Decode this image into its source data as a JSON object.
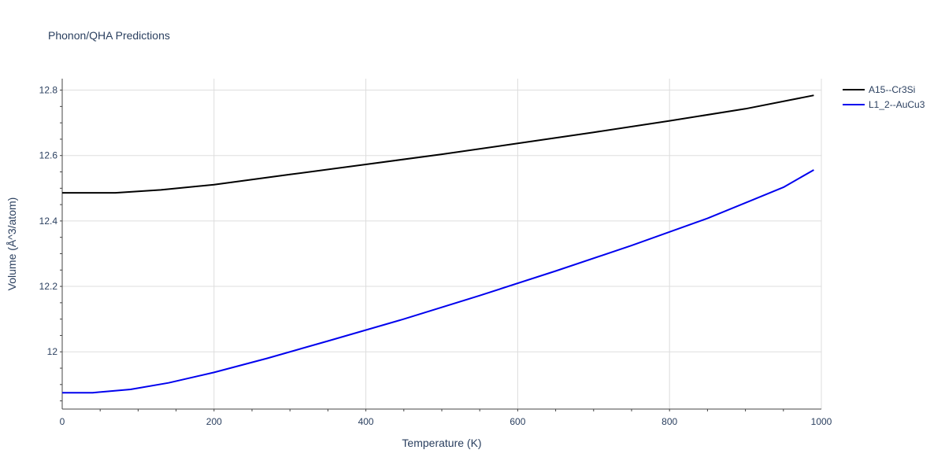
{
  "chart_data": {
    "type": "line",
    "title": "Phonon/QHA Predictions",
    "xlabel": "Temperature (K)",
    "ylabel": "Volume (Å^3/atom)",
    "xlim": [
      0,
      1000
    ],
    "ylim": [
      11.825,
      12.835
    ],
    "x_ticks": [
      0,
      200,
      400,
      600,
      800,
      1000
    ],
    "x_tick_labels": [
      "0",
      "200",
      "400",
      "600",
      "800",
      "1000"
    ],
    "y_ticks": [
      12.0,
      12.2,
      12.4,
      12.6,
      12.8
    ],
    "y_tick_labels": [
      "12",
      "12.2",
      "12.4",
      "12.6",
      "12.8"
    ],
    "grid": true,
    "legend_position": "top-right",
    "series": [
      {
        "name": "A15--Cr3Si",
        "color": "#000000",
        "x": [
          0,
          30,
          70,
          130,
          200,
          300,
          400,
          500,
          600,
          700,
          800,
          900,
          990
        ],
        "y": [
          12.486,
          12.486,
          12.486,
          12.495,
          12.511,
          12.542,
          12.573,
          12.604,
          12.637,
          12.671,
          12.706,
          12.743,
          12.784
        ]
      },
      {
        "name": "L1_2--AuCu3",
        "color": "#0000ee",
        "x": [
          0,
          40,
          90,
          140,
          200,
          270,
          350,
          450,
          550,
          650,
          750,
          850,
          950,
          990
        ],
        "y": [
          11.875,
          11.875,
          11.885,
          11.905,
          11.937,
          11.98,
          12.033,
          12.1,
          12.172,
          12.247,
          12.325,
          12.408,
          12.503,
          12.556
        ]
      }
    ]
  }
}
